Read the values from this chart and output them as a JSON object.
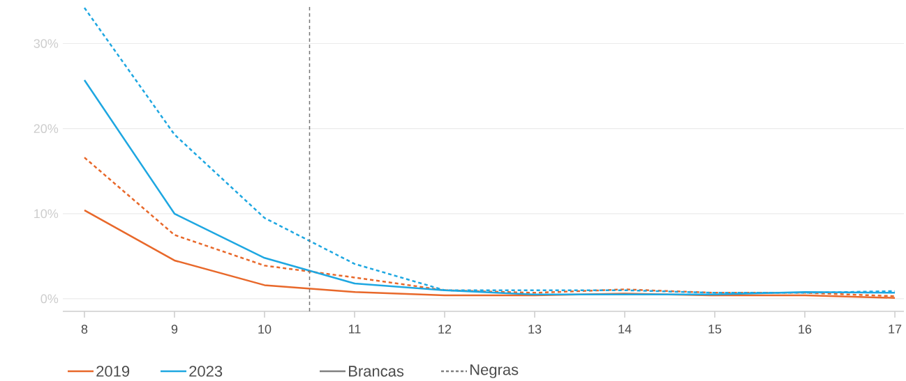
{
  "chart_data": {
    "type": "line",
    "x": [
      8,
      9,
      10,
      11,
      12,
      13,
      14,
      15,
      16,
      17
    ],
    "series": [
      {
        "name": "2019",
        "color": "#e8682a",
        "line_style": "solid",
        "values": [
          10.4,
          4.5,
          1.6,
          0.8,
          0.4,
          0.4,
          0.6,
          0.4,
          0.4,
          0.1
        ]
      },
      {
        "color": "#e8682a",
        "line_style": "dashed",
        "values": [
          16.6,
          7.5,
          3.9,
          2.5,
          1.0,
          0.7,
          1.1,
          0.7,
          0.7,
          0.3
        ]
      },
      {
        "name": "2023",
        "color": "#1ea7e1",
        "line_style": "solid",
        "values": [
          25.7,
          10.0,
          4.8,
          1.8,
          1.0,
          0.5,
          0.5,
          0.5,
          0.8,
          0.7
        ]
      },
      {
        "color": "#1ea7e1",
        "line_style": "dashed",
        "values": [
          34.2,
          19.3,
          9.5,
          4.1,
          1.0,
          1.0,
          1.0,
          0.7,
          0.7,
          0.9
        ]
      }
    ],
    "xlim": [
      7.76,
      17.1
    ],
    "ylim": [
      -1.48,
      34.3
    ],
    "xticks": [
      8,
      9,
      10,
      11,
      12,
      13,
      14,
      15,
      16,
      17
    ],
    "yticks": [
      {
        "value": 0,
        "label": "0%"
      },
      {
        "value": 10,
        "label": "10%"
      },
      {
        "value": 20,
        "label": "20%"
      },
      {
        "value": 30,
        "label": "30%"
      }
    ],
    "ref_lines": [
      {
        "axis": "x",
        "value": 10.5,
        "color": "#777777",
        "line_style": "dashed"
      }
    ],
    "annotations": [
      "Brancas",
      "Negras"
    ],
    "grid": "y",
    "legend": "bottom",
    "marker": "none"
  }
}
